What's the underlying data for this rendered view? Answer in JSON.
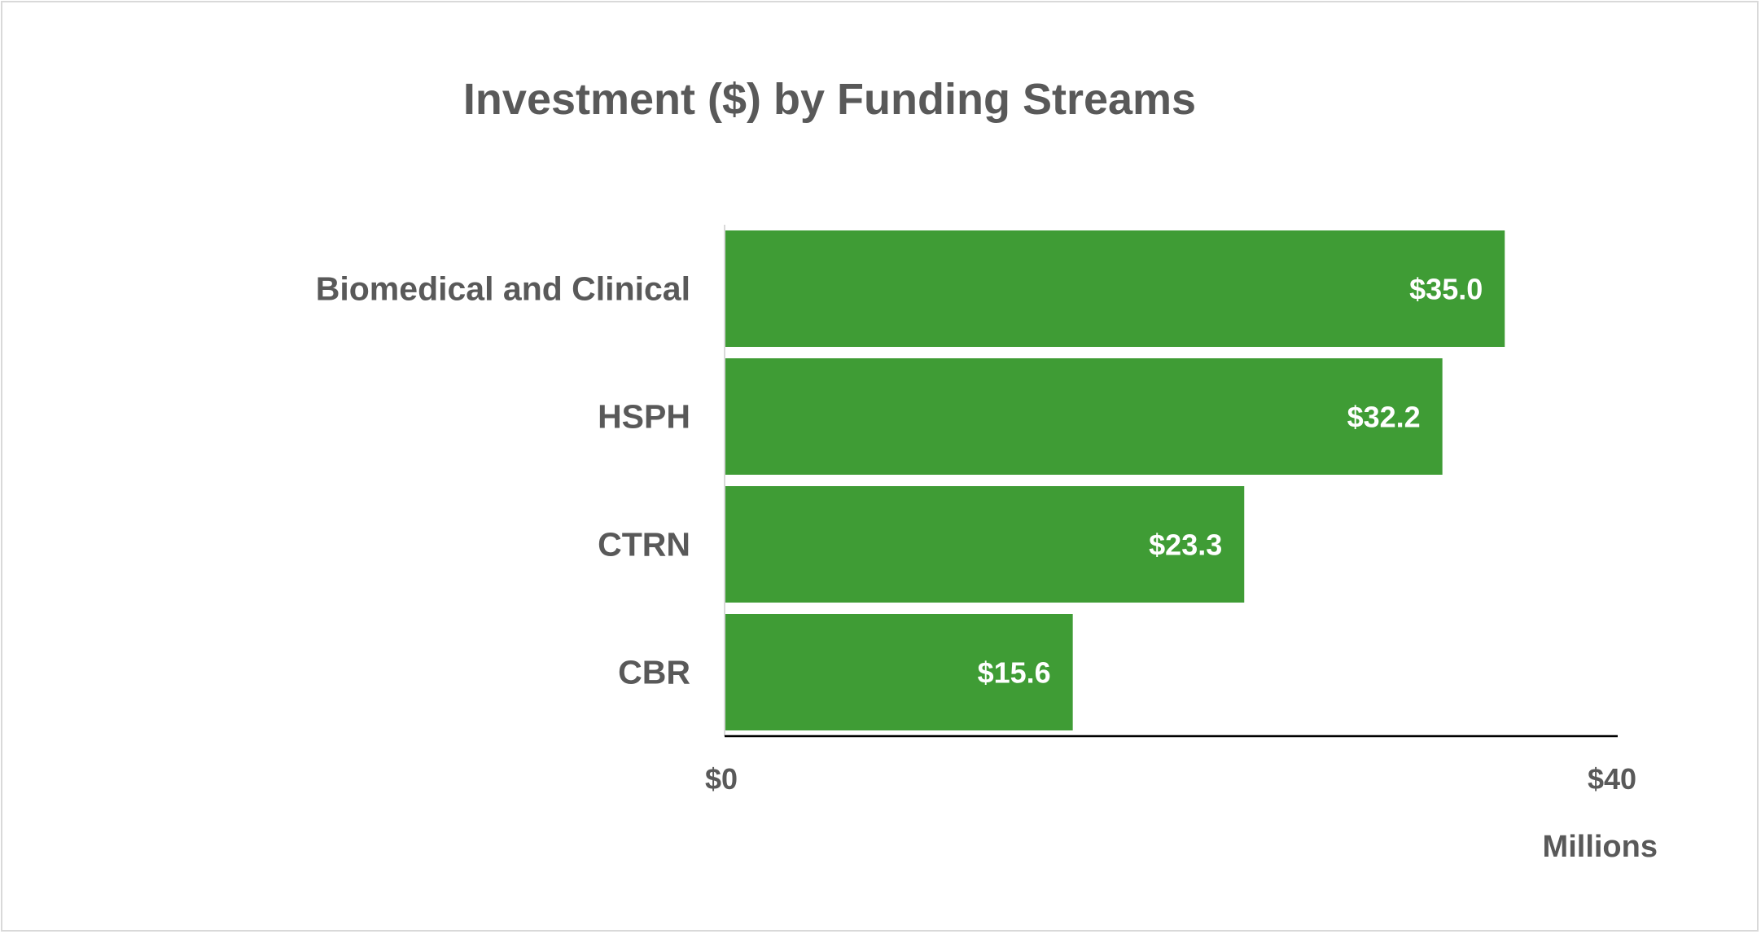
{
  "chart_data": {
    "type": "bar",
    "orientation": "horizontal",
    "title": "Investment ($) by Funding Streams",
    "categories": [
      "Biomedical and Clinical",
      "HSPH",
      "CTRN",
      "CBR"
    ],
    "values": [
      35.0,
      32.2,
      23.3,
      15.6
    ],
    "data_labels": [
      "$35.0",
      "$32.2",
      "$23.3",
      "$15.6"
    ],
    "xlim": [
      0,
      40
    ],
    "x_ticks": [
      0,
      40
    ],
    "x_tick_labels": [
      "$0",
      "$40"
    ],
    "x_unit_label": "Millions",
    "grid": false,
    "legend": "none",
    "colors": {
      "bar": "#3f9c35",
      "text": "#595959",
      "data_label": "#ffffff",
      "axis": "#000000"
    }
  }
}
